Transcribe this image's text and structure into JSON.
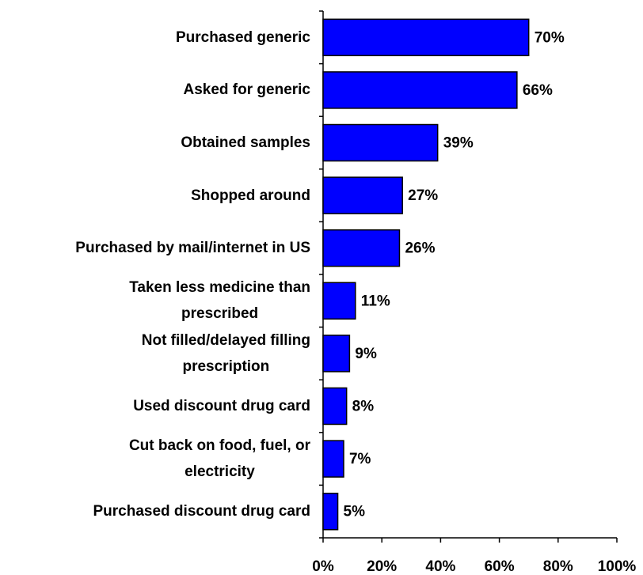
{
  "chart_data": {
    "type": "hbar",
    "categories": [
      [
        "Purchased generic"
      ],
      [
        "Asked for generic"
      ],
      [
        "Obtained samples"
      ],
      [
        "Shopped around"
      ],
      [
        "Purchased by mail/internet in US"
      ],
      [
        "Taken less medicine than",
        "prescribed"
      ],
      [
        "Not filled/delayed filling",
        "prescription"
      ],
      [
        "Used discount drug card"
      ],
      [
        "Cut back on food, fuel, or",
        "electricity"
      ],
      [
        "Purchased discount drug card"
      ]
    ],
    "values": [
      70,
      66,
      39,
      27,
      26,
      11,
      9,
      8,
      7,
      5
    ],
    "value_labels": [
      "70%",
      "66%",
      "39%",
      "27%",
      "26%",
      "11%",
      "9%",
      "8%",
      "7%",
      "5%"
    ],
    "color": "#0000ff",
    "xlim": [
      0,
      100
    ],
    "xticks": [
      {
        "value": 0,
        "label": "0%"
      },
      {
        "value": 20,
        "label": "20%"
      },
      {
        "value": 40,
        "label": "40%"
      },
      {
        "value": 60,
        "label": "60%"
      },
      {
        "value": 80,
        "label": "80%"
      },
      {
        "value": 100,
        "label": "100%"
      }
    ]
  }
}
